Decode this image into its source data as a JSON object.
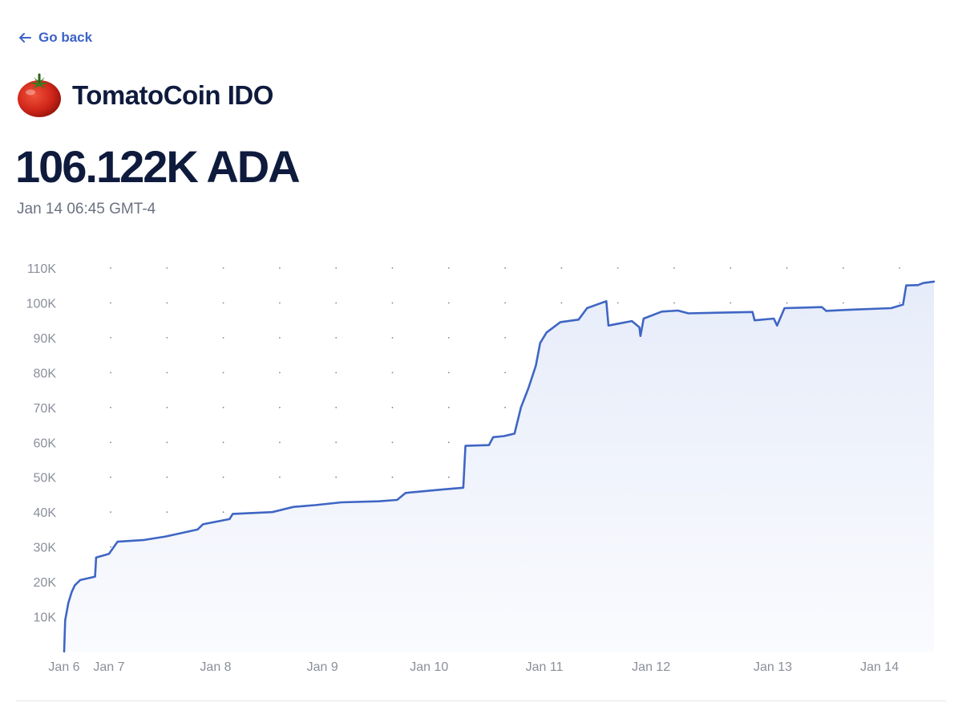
{
  "nav": {
    "back_label": "Go back",
    "back_icon": "arrow-left-icon"
  },
  "header": {
    "title": "TomatoCoin IDO",
    "logo_icon": "tomato-icon"
  },
  "summary": {
    "value": "106.122K ADA",
    "timestamp": "Jan 14 06:45 GMT-4"
  },
  "colors": {
    "accent": "#3d63c9",
    "line": "#3f66c4",
    "text_dark": "#0f1b3d",
    "text_muted": "#6b7280"
  },
  "chart_data": {
    "type": "area",
    "title": "",
    "xlabel": "",
    "ylabel": "",
    "ylim": [
      0,
      110000
    ],
    "xlim": [
      6.0,
      14.15
    ],
    "x_tick_values": [
      6,
      6.42,
      7.42,
      8.42,
      9.42,
      10.5,
      11.5,
      12.64,
      13.64
    ],
    "x_tick_labels": [
      "Jan 6",
      "Jan 7",
      "Jan 8",
      "Jan 9",
      "Jan 10",
      "Jan 11",
      "Jan 12",
      "Jan 13",
      "Jan 14"
    ],
    "y_tick_values": [
      10000,
      20000,
      30000,
      40000,
      50000,
      60000,
      70000,
      80000,
      90000,
      100000,
      110000
    ],
    "y_tick_labels": [
      "10K",
      "20K",
      "30K",
      "40K",
      "50K",
      "60K",
      "70K",
      "80K",
      "90K",
      "100K",
      "110K"
    ],
    "grid": "dotted",
    "series": [
      {
        "values": [
          [
            6.0,
            0
          ],
          [
            6.01,
            9000
          ],
          [
            6.04,
            14000
          ],
          [
            6.07,
            17000
          ],
          [
            6.1,
            19000
          ],
          [
            6.15,
            20500
          ],
          [
            6.29,
            21500
          ],
          [
            6.3,
            27000
          ],
          [
            6.42,
            28000
          ],
          [
            6.5,
            31500
          ],
          [
            6.75,
            32000
          ],
          [
            6.95,
            33000
          ],
          [
            7.25,
            35000
          ],
          [
            7.3,
            36500
          ],
          [
            7.55,
            38000
          ],
          [
            7.58,
            39500
          ],
          [
            7.95,
            40000
          ],
          [
            8.15,
            41500
          ],
          [
            8.35,
            42000
          ],
          [
            8.6,
            42800
          ],
          [
            8.95,
            43100
          ],
          [
            9.12,
            43500
          ],
          [
            9.2,
            45500
          ],
          [
            9.55,
            46500
          ],
          [
            9.74,
            47000
          ],
          [
            9.76,
            59000
          ],
          [
            9.98,
            59200
          ],
          [
            10.02,
            61500
          ],
          [
            10.12,
            61800
          ],
          [
            10.22,
            62500
          ],
          [
            10.28,
            70000
          ],
          [
            10.35,
            75500
          ],
          [
            10.42,
            82000
          ],
          [
            10.46,
            88500
          ],
          [
            10.52,
            91500
          ],
          [
            10.65,
            94500
          ],
          [
            10.82,
            95200
          ],
          [
            10.9,
            98500
          ],
          [
            11.08,
            100500
          ],
          [
            11.1,
            93500
          ],
          [
            11.32,
            94800
          ],
          [
            11.39,
            93000
          ],
          [
            11.4,
            90500
          ],
          [
            11.43,
            95500
          ],
          [
            11.6,
            97500
          ],
          [
            11.75,
            97800
          ],
          [
            11.85,
            97000
          ],
          [
            12.45,
            97400
          ],
          [
            12.47,
            95000
          ],
          [
            12.65,
            95500
          ],
          [
            12.68,
            93500
          ],
          [
            12.75,
            98500
          ],
          [
            13.1,
            98800
          ],
          [
            13.14,
            97700
          ],
          [
            13.35,
            98000
          ],
          [
            13.75,
            98500
          ],
          [
            13.86,
            99500
          ],
          [
            13.89,
            105000
          ],
          [
            14.0,
            105100
          ],
          [
            14.05,
            105700
          ],
          [
            14.15,
            106122
          ]
        ]
      }
    ]
  }
}
